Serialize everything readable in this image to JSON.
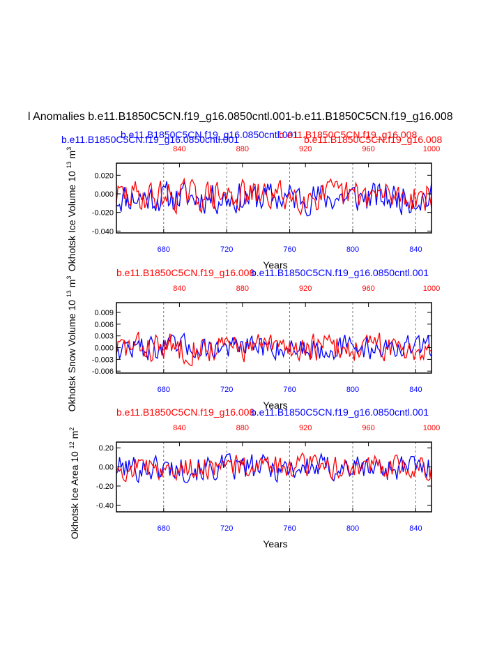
{
  "page": {
    "title": "l Anomalies b.e11.B1850C5CN.f19_g16.0850cntl.001-b.e11.B1850C5CN.f19_g16.008"
  },
  "colors": {
    "case1": "#0000ff",
    "case2": "#ff0000",
    "axis": "#000000"
  },
  "chart_data": [
    {
      "type": "line",
      "name": "volume",
      "ylabel": "Okhotsk Ice Volume 10",
      "ylabel_sup": "13",
      "ylabel_unit": "m",
      "ylabel_unit_sup": "3",
      "xlabel": "Years",
      "ylim": [
        -0.042,
        0.033
      ],
      "yticks": [
        -0.04,
        -0.02,
        0.0,
        0.02
      ],
      "ytick_labels": [
        "-0.040",
        "-0.020",
        "0.000",
        "0.020"
      ],
      "bottom_axis": {
        "name": "b.e11.B1850C5CN.f19_g16.0850cntl.001",
        "range": [
          650,
          850
        ],
        "ticks": [
          680,
          720,
          760,
          800,
          840
        ]
      },
      "top_axis": {
        "name": "b.e11.B1850C5CN.f19_g16.008",
        "range": [
          800,
          1000
        ],
        "ticks": [
          840,
          880,
          920,
          960,
          1000
        ]
      },
      "top_labels": [
        {
          "text": "b.e11.B1850C5CN.f19_g16.0850cntl.001",
          "role": "case1"
        },
        {
          "text": "b.e11.B1850C5CN.f19_g16.008",
          "role": "case2"
        },
        {
          "text": "b.e11.B1850C5CN.f19_g16.0850cntl.001",
          "role": "case1"
        },
        {
          "text": "b.e11.B1850C5CN.f19_g16.008",
          "role": "case2"
        }
      ],
      "series": [
        {
          "name": "b.e11.B1850C5CN.f19_g16.0850cntl.001",
          "amplitude": 0.019,
          "mean": -0.004,
          "seed": 11
        },
        {
          "name": "b.e11.B1850C5CN.f19_g16.008",
          "amplitude": 0.019,
          "mean": -0.002,
          "seed": 29
        }
      ]
    },
    {
      "type": "line",
      "name": "snow",
      "ylabel": "Okhotsk Snow Volume 10",
      "ylabel_sup": "13",
      "ylabel_unit": "m",
      "ylabel_unit_sup": "3",
      "xlabel": "Years",
      "ylim": [
        -0.0065,
        0.0115
      ],
      "yticks": [
        -0.006,
        -0.003,
        0.0,
        0.003,
        0.006,
        0.009
      ],
      "ytick_labels": [
        "-0.006",
        "-0.003",
        "0.000",
        "0.003",
        "0.006",
        "0.009"
      ],
      "bottom_axis": {
        "name": "b.e11.B1850C5CN.f19_g16.0850cntl.001",
        "range": [
          650,
          850
        ],
        "ticks": [
          680,
          720,
          760,
          800,
          840
        ]
      },
      "top_axis": {
        "name": "b.e11.B1850C5CN.f19_g16.008",
        "range": [
          800,
          1000
        ],
        "ticks": [
          840,
          880,
          920,
          960,
          1000
        ]
      },
      "top_labels": [
        {
          "text": "b.e11.B1850C5CN.f19_g16.008",
          "role": "case2"
        },
        {
          "text": "b.e11.B1850C5CN.f19_g16.0850cntl.001",
          "role": "case1"
        }
      ],
      "series": [
        {
          "name": "b.e11.B1850C5CN.f19_g16.0850cntl.001",
          "amplitude": 0.0035,
          "mean": 0.0,
          "seed": 47
        },
        {
          "name": "b.e11.B1850C5CN.f19_g16.008",
          "amplitude": 0.0042,
          "mean": 0.0,
          "seed": 83
        }
      ]
    },
    {
      "type": "line",
      "name": "area",
      "ylabel": "Okhotsk Ice Area 10",
      "ylabel_sup": "12",
      "ylabel_unit": "m",
      "ylabel_unit_sup": "2",
      "xlabel": "Years",
      "ylim": [
        -0.47,
        0.26
      ],
      "yticks": [
        -0.4,
        -0.2,
        0.0,
        0.2
      ],
      "ytick_labels": [
        "-0.40",
        "-0.20",
        "0.00",
        "0.20"
      ],
      "bottom_axis": {
        "name": "b.e11.B1850C5CN.f19_g16.0850cntl.001",
        "range": [
          650,
          850
        ],
        "ticks": [
          680,
          720,
          760,
          800,
          840
        ]
      },
      "top_axis": {
        "name": "b.e11.B1850C5CN.f19_g16.008",
        "range": [
          800,
          1000
        ],
        "ticks": [
          840,
          880,
          920,
          960,
          1000
        ]
      },
      "top_labels": [
        {
          "text": "b.e11.B1850C5CN.f19_g16.008",
          "role": "case2"
        },
        {
          "text": "b.e11.B1850C5CN.f19_g16.0850cntl.001",
          "role": "case1"
        }
      ],
      "series": [
        {
          "name": "b.e11.B1850C5CN.f19_g16.0850cntl.001",
          "amplitude": 0.16,
          "mean": -0.01,
          "seed": 101
        },
        {
          "name": "b.e11.B1850C5CN.f19_g16.008",
          "amplitude": 0.14,
          "mean": 0.0,
          "seed": 157
        }
      ]
    }
  ]
}
